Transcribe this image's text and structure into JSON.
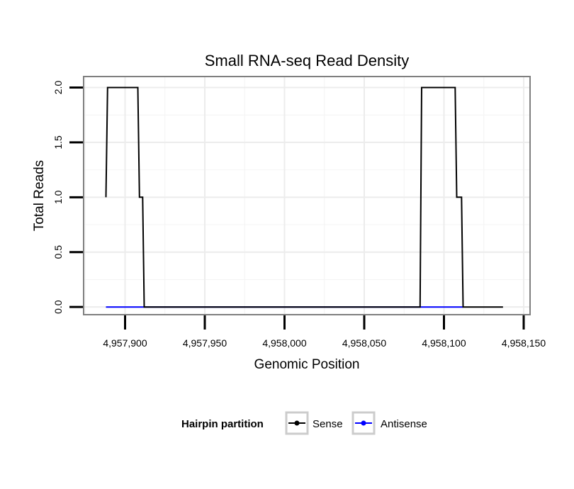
{
  "chart_data": {
    "type": "line",
    "title": "Small RNA-seq Read Density",
    "xlabel": "Genomic Position",
    "ylabel": "Total Reads",
    "xlim": [
      4957874,
      4958154
    ],
    "ylim": [
      -0.07,
      2.1
    ],
    "x_ticks": [
      4957900,
      4957950,
      4958000,
      4958050,
      4958100,
      4958150
    ],
    "x_tick_labels": [
      "4,957,900",
      "4,957,950",
      "4,958,000",
      "4,958,050",
      "4,958,100",
      "4,958,150"
    ],
    "y_ticks": [
      0,
      0.5,
      1,
      1.5,
      2
    ],
    "y_tick_labels": [
      "0.0",
      "0.5",
      "1.0",
      "1.5",
      "2.0"
    ],
    "grid": true,
    "legend": {
      "title": "Hairpin partition",
      "placement": "bottom",
      "entries": [
        "Sense",
        "Antisense"
      ]
    },
    "series": [
      {
        "name": "Sense",
        "color": "#000000",
        "points": [
          [
            4957888,
            1
          ],
          [
            4957889,
            2
          ],
          [
            4957908,
            2
          ],
          [
            4957909,
            1
          ],
          [
            4957911,
            1
          ],
          [
            4957912,
            0
          ],
          [
            4958085,
            0
          ],
          [
            4958086,
            2
          ],
          [
            4958107,
            2
          ],
          [
            4958108,
            1
          ],
          [
            4958111,
            1
          ],
          [
            4958112,
            0
          ],
          [
            4958137,
            0
          ]
        ]
      },
      {
        "name": "Antisense",
        "color": "#0000ff",
        "points": [
          [
            4957888,
            0
          ],
          [
            4958112,
            0
          ]
        ]
      }
    ]
  }
}
